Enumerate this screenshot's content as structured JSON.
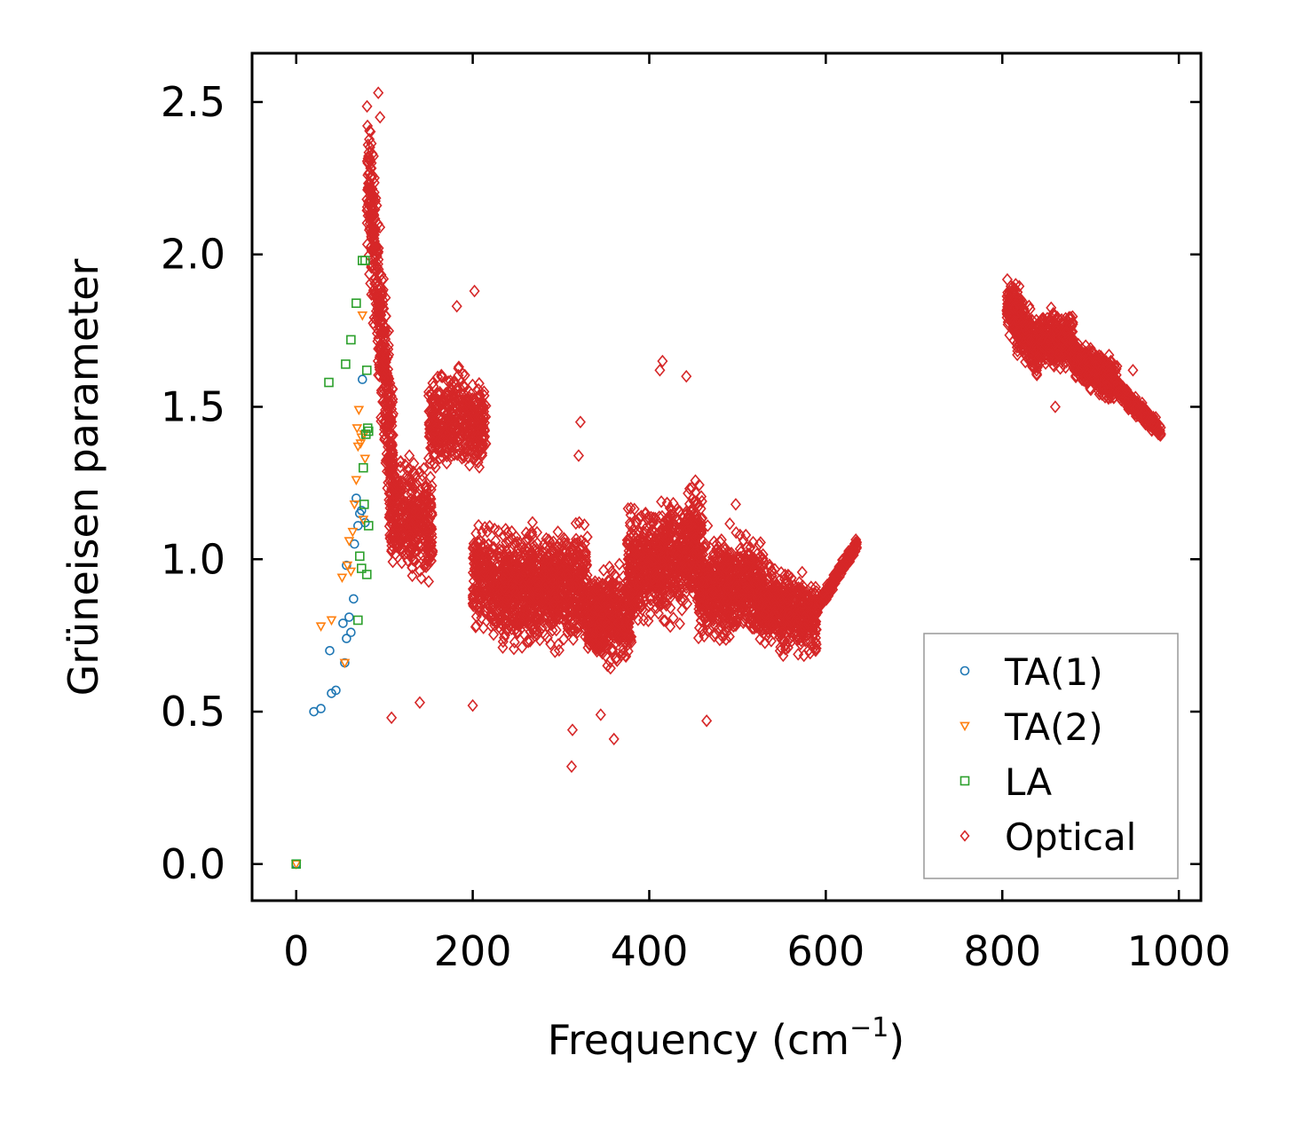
{
  "chart_data": {
    "type": "scatter",
    "title": "",
    "xlabel": "Frequency (cm",
    "xlabel_sup": "−1",
    "xlabel_close": ")",
    "ylabel": "Grüneisen parameter",
    "xlim": [
      -50,
      1025
    ],
    "ylim": [
      -0.12,
      2.66
    ],
    "xticks": [
      0,
      200,
      400,
      600,
      800,
      1000
    ],
    "xtick_labels": [
      "0",
      "200",
      "400",
      "600",
      "800",
      "1000"
    ],
    "yticks": [
      0.0,
      0.5,
      1.0,
      1.5,
      2.0,
      2.5
    ],
    "ytick_labels": [
      "0.0",
      "0.5",
      "1.0",
      "1.5",
      "2.0",
      "2.5"
    ],
    "grid": false,
    "legend_position": "bottom-right",
    "series": [
      {
        "name": "TA(1)",
        "marker": "circle",
        "color": "#1f77b4",
        "points": [
          [
            0,
            0.0
          ],
          [
            20,
            0.5
          ],
          [
            28,
            0.51
          ],
          [
            38,
            0.7
          ],
          [
            40,
            0.56
          ],
          [
            45,
            0.57
          ],
          [
            53,
            0.79
          ],
          [
            55,
            0.66
          ],
          [
            57,
            0.98
          ],
          [
            57,
            0.74
          ],
          [
            60,
            0.81
          ],
          [
            62,
            0.76
          ],
          [
            65,
            0.87
          ],
          [
            66,
            1.05
          ],
          [
            68,
            1.2
          ],
          [
            70,
            1.11
          ],
          [
            72,
            1.15
          ],
          [
            74,
            1.16
          ],
          [
            75,
            1.59
          ],
          [
            78,
            1.12
          ]
        ]
      },
      {
        "name": "TA(2)",
        "marker": "triangle-down",
        "color": "#ff7f0e",
        "points": [
          [
            0,
            0.0
          ],
          [
            28,
            0.78
          ],
          [
            40,
            0.8
          ],
          [
            52,
            0.94
          ],
          [
            55,
            0.66
          ],
          [
            58,
            0.98
          ],
          [
            60,
            1.06
          ],
          [
            62,
            0.96
          ],
          [
            64,
            1.09
          ],
          [
            66,
            1.18
          ],
          [
            68,
            1.26
          ],
          [
            69,
            1.43
          ],
          [
            70,
            1.37
          ],
          [
            71,
            1.49
          ],
          [
            73,
            1.38
          ],
          [
            74,
            1.4
          ],
          [
            75,
            1.8
          ],
          [
            76,
            1.13
          ],
          [
            77,
            1.41
          ],
          [
            78,
            1.33
          ]
        ]
      },
      {
        "name": "LA",
        "marker": "square",
        "color": "#2ca02c",
        "points": [
          [
            0,
            0.0
          ],
          [
            37,
            1.58
          ],
          [
            56,
            1.64
          ],
          [
            62,
            1.72
          ],
          [
            68,
            1.84
          ],
          [
            70,
            0.8
          ],
          [
            72,
            1.01
          ],
          [
            74,
            0.97
          ],
          [
            75,
            1.98
          ],
          [
            76,
            1.3
          ],
          [
            77,
            1.18
          ],
          [
            78,
            1.98
          ],
          [
            79,
            1.41
          ],
          [
            80,
            1.62
          ],
          [
            80,
            0.95
          ],
          [
            81,
            1.43
          ],
          [
            82,
            1.42
          ],
          [
            82,
            1.11
          ]
        ]
      },
      {
        "name": "Optical",
        "marker": "diamond",
        "color": "#d62728",
        "points": [],
        "clusters": [
          {
            "x": [
              80,
              110
            ],
            "y_center_from": 2.3,
            "y_center_to": 1.3,
            "spread": 0.55,
            "n": 420
          },
          {
            "x": [
              105,
              155
            ],
            "y_center_from": 1.15,
            "y_center_to": 1.1,
            "spread": 0.38,
            "n": 380
          },
          {
            "x": [
              150,
              215
            ],
            "y_center_from": 1.45,
            "y_center_to": 1.45,
            "spread": 0.32,
            "n": 420
          },
          {
            "x": [
              200,
              240
            ],
            "y_center_from": 0.95,
            "y_center_to": 0.9,
            "spread": 0.35,
            "n": 320
          },
          {
            "x": [
              235,
              330
            ],
            "y_center_from": 0.9,
            "y_center_to": 0.92,
            "spread": 0.38,
            "n": 900
          },
          {
            "x": [
              330,
              380
            ],
            "y_center_from": 0.8,
            "y_center_to": 0.82,
            "spread": 0.3,
            "n": 450
          },
          {
            "x": [
              375,
              460
            ],
            "y_center_from": 0.95,
            "y_center_to": 1.05,
            "spread": 0.38,
            "n": 850
          },
          {
            "x": [
              455,
              530
            ],
            "y_center_from": 0.9,
            "y_center_to": 0.92,
            "spread": 0.33,
            "n": 650
          },
          {
            "x": [
              525,
              590
            ],
            "y_center_from": 0.85,
            "y_center_to": 0.8,
            "spread": 0.25,
            "n": 550
          },
          {
            "x": [
              590,
              635
            ],
            "y_center_from": 0.84,
            "y_center_to": 1.05,
            "spread": 0.05,
            "n": 200
          },
          {
            "x": [
              805,
              840
            ],
            "y_center_from": 1.85,
            "y_center_to": 1.68,
            "spread": 0.2,
            "n": 300
          },
          {
            "x": [
              840,
              880
            ],
            "y_center_from": 1.72,
            "y_center_to": 1.72,
            "spread": 0.18,
            "n": 350
          },
          {
            "x": [
              880,
              930
            ],
            "y_center_from": 1.66,
            "y_center_to": 1.58,
            "spread": 0.14,
            "n": 350
          },
          {
            "x": [
              930,
              980
            ],
            "y_center_from": 1.56,
            "y_center_to": 1.42,
            "spread": 0.06,
            "n": 250
          }
        ],
        "outliers": [
          [
            93,
            2.53
          ],
          [
            95,
            2.45
          ],
          [
            140,
            0.53
          ],
          [
            108,
            0.48
          ],
          [
            202,
            1.88
          ],
          [
            182,
            1.83
          ],
          [
            312,
            0.32
          ],
          [
            322,
            1.45
          ],
          [
            320,
            1.34
          ],
          [
            313,
            0.44
          ],
          [
            345,
            0.49
          ],
          [
            360,
            0.41
          ],
          [
            415,
            1.65
          ],
          [
            412,
            1.62
          ],
          [
            442,
            1.6
          ],
          [
            200,
            0.52
          ],
          [
            498,
            1.18
          ],
          [
            465,
            0.47
          ],
          [
            860,
            1.5
          ],
          [
            948,
            1.62
          ]
        ]
      }
    ]
  }
}
